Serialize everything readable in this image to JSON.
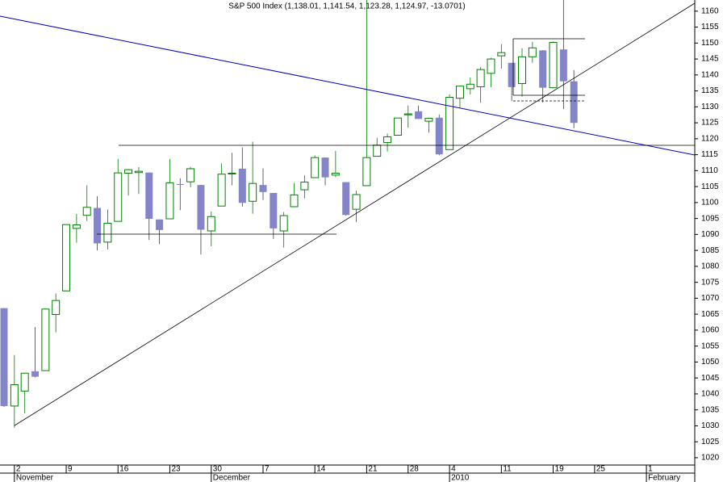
{
  "chart_data": {
    "type": "candlestick",
    "title": "S&P 500 Index (1,138.01, 1,141.54, 1,123.28, 1,124.97, -13.0701)",
    "categories": [
      null,
      "2",
      null,
      null,
      null,
      null,
      "9",
      null,
      null,
      null,
      null,
      "16",
      null,
      null,
      null,
      null,
      "23",
      null,
      null,
      null,
      "30",
      null,
      null,
      null,
      null,
      "7",
      null,
      null,
      null,
      null,
      "14",
      null,
      null,
      null,
      null,
      "21",
      null,
      null,
      null,
      "28",
      null,
      null,
      null,
      "4",
      null,
      null,
      null,
      null,
      "11",
      null,
      null,
      null,
      null,
      "19",
      null,
      null,
      null,
      "25",
      null,
      null,
      null,
      null,
      "1",
      null,
      null,
      null,
      null
    ],
    "months": [
      null,
      "November",
      null,
      null,
      null,
      null,
      null,
      null,
      null,
      null,
      null,
      null,
      null,
      null,
      null,
      null,
      null,
      null,
      null,
      null,
      "December",
      null,
      null,
      null,
      null,
      null,
      null,
      null,
      null,
      null,
      null,
      null,
      null,
      null,
      null,
      null,
      null,
      null,
      null,
      null,
      null,
      null,
      null,
      "2010",
      null,
      null,
      null,
      null,
      null,
      null,
      null,
      null,
      null,
      null,
      null,
      null,
      null,
      null,
      null,
      null,
      null,
      null,
      "February",
      null,
      null,
      null,
      null
    ],
    "open": [
      1066.9,
      1036.2,
      1040.9,
      1047.1,
      1047.3,
      1064.9,
      1072.3,
      1091.9,
      1096,
      1098.3,
      1087.6,
      1094.1,
      1109.2,
      1109.4,
      1109.4,
      1094.7,
      1094.9,
      1105.8,
      1106.5,
      1105.5,
      1091.1,
      1098.9,
      1109,
      1110.6,
      1100.4,
      1105.5,
      1103,
      1091.1,
      1098.7,
      1104,
      1107.8,
      1114.1,
      1108.6,
      1106.4,
      1097.9,
      1105.3,
      1114.5,
      1118.8,
      1121.1,
      1127.5,
      1128.6,
      1125.5,
      1126.6,
      1116.6,
      1132.7,
      1135.7,
      1136.3,
      1140.5,
      1146,
      1143.8,
      1137.3,
      1145.7,
      1147.7,
      1136,
      1148,
      1138.01,
      null,
      null,
      null,
      null,
      null,
      null,
      null,
      null,
      null,
      null,
      null
    ],
    "high": [
      1066.9,
      1052.2,
      1046.4,
      1061,
      1066.7,
      1071.5,
      1093.2,
      1096.4,
      1105.4,
      1102,
      1097.8,
      1113.7,
      1110.5,
      1111.1,
      1109.4,
      1094.7,
      1113.7,
      1107.6,
      1111.2,
      1105.5,
      1097.2,
      1112.3,
      1115.6,
      1117.3,
      1119.1,
      1110.7,
      1103,
      1097,
      1106.2,
      1108.5,
      1114.8,
      1114.1,
      1116.2,
      1106.4,
      1103.7,
      1165,
      1120.3,
      1121.6,
      1126.5,
      1130.4,
      1130.4,
      1126.6,
      1127.6,
      1133.9,
      1136.6,
      1139.2,
      1142.5,
      1145.4,
      1149.7,
      1143.8,
      1148.4,
      1150.4,
      1147.8,
      1150.5,
      1165,
      1141.54,
      null,
      null,
      null,
      null,
      null,
      null,
      null,
      null,
      null,
      null,
      null
    ],
    "low": [
      1035.9,
      1029.4,
      1033.9,
      1045.2,
      1047.3,
      1059.3,
      1072.3,
      1087.4,
      1094.2,
      1085,
      1085.3,
      1094.1,
      1102.2,
      1102.7,
      1088.3,
      1087,
      1094.9,
      1097.6,
      1104.8,
      1083.7,
      1086.3,
      1098.9,
      1105.4,
      1098.7,
      1096.5,
      1100.8,
      1088.6,
      1085.9,
      1098.7,
      1101.3,
      1107.8,
      1105.4,
      1108,
      1095.9,
      1093.9,
      1105.3,
      1114.5,
      1116,
      1121.1,
      1123.5,
      1126.2,
      1121.9,
      1114.8,
      1116.6,
      1129.7,
      1133.9,
      1131.3,
      1136.2,
      1142,
      1131.8,
      1133.2,
      1143.8,
      1131.4,
      1135.8,
      1129.3,
      1123.28,
      null,
      null,
      null,
      null,
      null,
      null,
      null,
      null,
      null,
      null,
      null
    ],
    "close": [
      1036.2,
      1042.9,
      1046.5,
      1045.4,
      1066.6,
      1069.3,
      1093.1,
      1093,
      1098.5,
      1087.2,
      1093.5,
      1109.3,
      1110.3,
      1109.8,
      1094.9,
      1091.4,
      1106.2,
      1105.7,
      1110.6,
      1091.5,
      1095.6,
      1108.9,
      1109.2,
      1099.9,
      1106,
      1103.3,
      1091.9,
      1095.9,
      1102.4,
      1106.4,
      1114.1,
      1107.9,
      1109.2,
      1096.1,
      1102.5,
      1114.1,
      1118,
      1120.6,
      1126.5,
      1127.8,
      1126.2,
      1126.4,
      1115.1,
      1133,
      1136.5,
      1137.1,
      1141.7,
      1145,
      1147,
      1136.2,
      1145.7,
      1148.5,
      1136,
      1150.2,
      1138,
      1124.97,
      null,
      null,
      null,
      null,
      null,
      null,
      null,
      null,
      null,
      null,
      null
    ],
    "up_color": "#008000",
    "down_color": "#8484c8",
    "ylim": [
      1017.7,
      1163.5
    ],
    "yticks": [
      1020,
      1025,
      1030,
      1035,
      1040,
      1045,
      1050,
      1055,
      1060,
      1065,
      1070,
      1075,
      1080,
      1085,
      1090,
      1095,
      1100,
      1105,
      1110,
      1115,
      1120,
      1125,
      1130,
      1135,
      1140,
      1145,
      1150,
      1155,
      1160
    ]
  }
}
